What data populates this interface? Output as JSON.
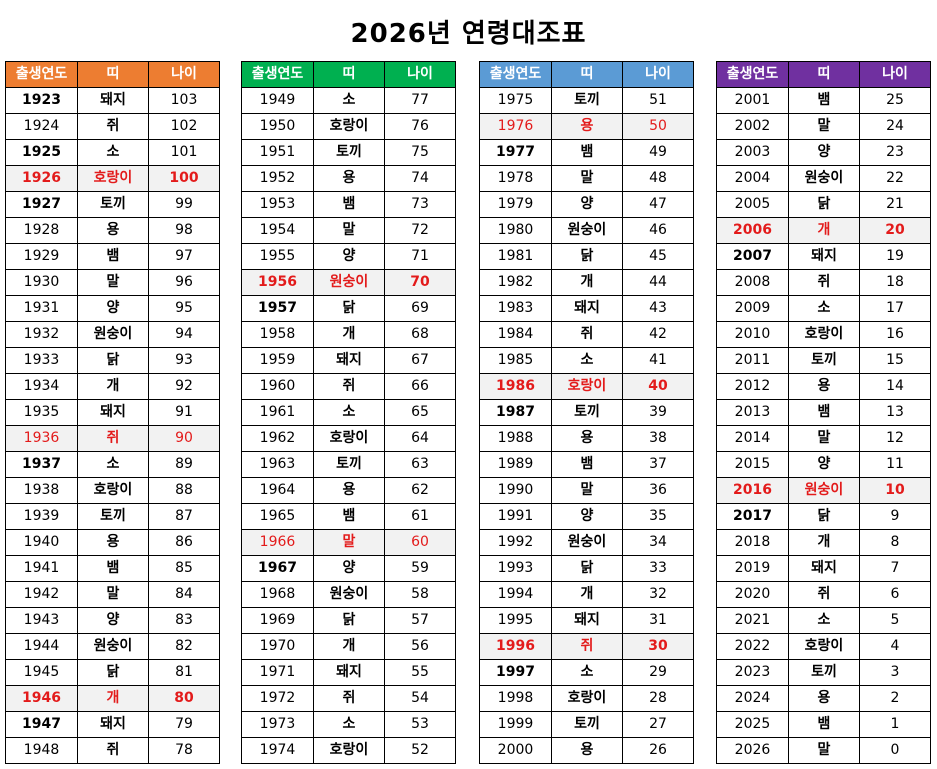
{
  "title": "2026년 연령대조표",
  "headers": {
    "year": "출생연도",
    "zodiac": "띠",
    "age": "나이"
  },
  "tables": [
    {
      "color": "#ED7D31",
      "rows": [
        {
          "year": "1923",
          "zodiac": "돼지",
          "age": "103",
          "bold_year": true
        },
        {
          "year": "1924",
          "zodiac": "쥐",
          "age": "102"
        },
        {
          "year": "1925",
          "zodiac": "소",
          "age": "101",
          "bold_year": true
        },
        {
          "year": "1926",
          "zodiac": "호랑이",
          "age": "100",
          "highlight": true,
          "bold_year": true
        },
        {
          "year": "1927",
          "zodiac": "토끼",
          "age": "99",
          "bold_year": true
        },
        {
          "year": "1928",
          "zodiac": "용",
          "age": "98"
        },
        {
          "year": "1929",
          "zodiac": "뱀",
          "age": "97"
        },
        {
          "year": "1930",
          "zodiac": "말",
          "age": "96"
        },
        {
          "year": "1931",
          "zodiac": "양",
          "age": "95"
        },
        {
          "year": "1932",
          "zodiac": "원숭이",
          "age": "94"
        },
        {
          "year": "1933",
          "zodiac": "닭",
          "age": "93"
        },
        {
          "year": "1934",
          "zodiac": "개",
          "age": "92"
        },
        {
          "year": "1935",
          "zodiac": "돼지",
          "age": "91"
        },
        {
          "year": "1936",
          "zodiac": "쥐",
          "age": "90",
          "highlight": true
        },
        {
          "year": "1937",
          "zodiac": "소",
          "age": "89",
          "bold_year": true
        },
        {
          "year": "1938",
          "zodiac": "호랑이",
          "age": "88"
        },
        {
          "year": "1939",
          "zodiac": "토끼",
          "age": "87"
        },
        {
          "year": "1940",
          "zodiac": "용",
          "age": "86"
        },
        {
          "year": "1941",
          "zodiac": "뱀",
          "age": "85"
        },
        {
          "year": "1942",
          "zodiac": "말",
          "age": "84"
        },
        {
          "year": "1943",
          "zodiac": "양",
          "age": "83"
        },
        {
          "year": "1944",
          "zodiac": "원숭이",
          "age": "82"
        },
        {
          "year": "1945",
          "zodiac": "닭",
          "age": "81"
        },
        {
          "year": "1946",
          "zodiac": "개",
          "age": "80",
          "highlight": true,
          "bold_year": true
        },
        {
          "year": "1947",
          "zodiac": "돼지",
          "age": "79",
          "bold_year": true
        },
        {
          "year": "1948",
          "zodiac": "쥐",
          "age": "78"
        }
      ]
    },
    {
      "color": "#00B050",
      "rows": [
        {
          "year": "1949",
          "zodiac": "소",
          "age": "77"
        },
        {
          "year": "1950",
          "zodiac": "호랑이",
          "age": "76"
        },
        {
          "year": "1951",
          "zodiac": "토끼",
          "age": "75"
        },
        {
          "year": "1952",
          "zodiac": "용",
          "age": "74"
        },
        {
          "year": "1953",
          "zodiac": "뱀",
          "age": "73"
        },
        {
          "year": "1954",
          "zodiac": "말",
          "age": "72"
        },
        {
          "year": "1955",
          "zodiac": "양",
          "age": "71"
        },
        {
          "year": "1956",
          "zodiac": "원숭이",
          "age": "70",
          "highlight": true,
          "bold_year": true
        },
        {
          "year": "1957",
          "zodiac": "닭",
          "age": "69",
          "bold_year": true
        },
        {
          "year": "1958",
          "zodiac": "개",
          "age": "68"
        },
        {
          "year": "1959",
          "zodiac": "돼지",
          "age": "67"
        },
        {
          "year": "1960",
          "zodiac": "쥐",
          "age": "66"
        },
        {
          "year": "1961",
          "zodiac": "소",
          "age": "65"
        },
        {
          "year": "1962",
          "zodiac": "호랑이",
          "age": "64"
        },
        {
          "year": "1963",
          "zodiac": "토끼",
          "age": "63"
        },
        {
          "year": "1964",
          "zodiac": "용",
          "age": "62"
        },
        {
          "year": "1965",
          "zodiac": "뱀",
          "age": "61"
        },
        {
          "year": "1966",
          "zodiac": "말",
          "age": "60",
          "highlight": true
        },
        {
          "year": "1967",
          "zodiac": "양",
          "age": "59",
          "bold_year": true
        },
        {
          "year": "1968",
          "zodiac": "원숭이",
          "age": "58"
        },
        {
          "year": "1969",
          "zodiac": "닭",
          "age": "57"
        },
        {
          "year": "1970",
          "zodiac": "개",
          "age": "56"
        },
        {
          "year": "1971",
          "zodiac": "돼지",
          "age": "55"
        },
        {
          "year": "1972",
          "zodiac": "쥐",
          "age": "54"
        },
        {
          "year": "1973",
          "zodiac": "소",
          "age": "53"
        },
        {
          "year": "1974",
          "zodiac": "호랑이",
          "age": "52"
        }
      ]
    },
    {
      "color": "#5B9BD5",
      "rows": [
        {
          "year": "1975",
          "zodiac": "토끼",
          "age": "51"
        },
        {
          "year": "1976",
          "zodiac": "용",
          "age": "50",
          "highlight": true
        },
        {
          "year": "1977",
          "zodiac": "뱀",
          "age": "49",
          "bold_year": true
        },
        {
          "year": "1978",
          "zodiac": "말",
          "age": "48"
        },
        {
          "year": "1979",
          "zodiac": "양",
          "age": "47"
        },
        {
          "year": "1980",
          "zodiac": "원숭이",
          "age": "46"
        },
        {
          "year": "1981",
          "zodiac": "닭",
          "age": "45"
        },
        {
          "year": "1982",
          "zodiac": "개",
          "age": "44"
        },
        {
          "year": "1983",
          "zodiac": "돼지",
          "age": "43"
        },
        {
          "year": "1984",
          "zodiac": "쥐",
          "age": "42"
        },
        {
          "year": "1985",
          "zodiac": "소",
          "age": "41"
        },
        {
          "year": "1986",
          "zodiac": "호랑이",
          "age": "40",
          "highlight": true,
          "bold_year": true
        },
        {
          "year": "1987",
          "zodiac": "토끼",
          "age": "39",
          "bold_year": true
        },
        {
          "year": "1988",
          "zodiac": "용",
          "age": "38"
        },
        {
          "year": "1989",
          "zodiac": "뱀",
          "age": "37"
        },
        {
          "year": "1990",
          "zodiac": "말",
          "age": "36"
        },
        {
          "year": "1991",
          "zodiac": "양",
          "age": "35"
        },
        {
          "year": "1992",
          "zodiac": "원숭이",
          "age": "34"
        },
        {
          "year": "1993",
          "zodiac": "닭",
          "age": "33"
        },
        {
          "year": "1994",
          "zodiac": "개",
          "age": "32"
        },
        {
          "year": "1995",
          "zodiac": "돼지",
          "age": "31"
        },
        {
          "year": "1996",
          "zodiac": "쥐",
          "age": "30",
          "highlight": true,
          "bold_year": true
        },
        {
          "year": "1997",
          "zodiac": "소",
          "age": "29",
          "bold_year": true
        },
        {
          "year": "1998",
          "zodiac": "호랑이",
          "age": "28"
        },
        {
          "year": "1999",
          "zodiac": "토끼",
          "age": "27"
        },
        {
          "year": "2000",
          "zodiac": "용",
          "age": "26"
        }
      ]
    },
    {
      "color": "#7030A0",
      "rows": [
        {
          "year": "2001",
          "zodiac": "뱀",
          "age": "25"
        },
        {
          "year": "2002",
          "zodiac": "말",
          "age": "24"
        },
        {
          "year": "2003",
          "zodiac": "양",
          "age": "23"
        },
        {
          "year": "2004",
          "zodiac": "원숭이",
          "age": "22"
        },
        {
          "year": "2005",
          "zodiac": "닭",
          "age": "21"
        },
        {
          "year": "2006",
          "zodiac": "개",
          "age": "20",
          "highlight": true,
          "bold_year": true
        },
        {
          "year": "2007",
          "zodiac": "돼지",
          "age": "19",
          "bold_year": true
        },
        {
          "year": "2008",
          "zodiac": "쥐",
          "age": "18"
        },
        {
          "year": "2009",
          "zodiac": "소",
          "age": "17"
        },
        {
          "year": "2010",
          "zodiac": "호랑이",
          "age": "16"
        },
        {
          "year": "2011",
          "zodiac": "토끼",
          "age": "15"
        },
        {
          "year": "2012",
          "zodiac": "용",
          "age": "14"
        },
        {
          "year": "2013",
          "zodiac": "뱀",
          "age": "13"
        },
        {
          "year": "2014",
          "zodiac": "말",
          "age": "12"
        },
        {
          "year": "2015",
          "zodiac": "양",
          "age": "11"
        },
        {
          "year": "2016",
          "zodiac": "원숭이",
          "age": "10",
          "highlight": true,
          "bold_year": true
        },
        {
          "year": "2017",
          "zodiac": "닭",
          "age": "9",
          "bold_year": true
        },
        {
          "year": "2018",
          "zodiac": "개",
          "age": "8"
        },
        {
          "year": "2019",
          "zodiac": "돼지",
          "age": "7"
        },
        {
          "year": "2020",
          "zodiac": "쥐",
          "age": "6"
        },
        {
          "year": "2021",
          "zodiac": "소",
          "age": "5"
        },
        {
          "year": "2022",
          "zodiac": "호랑이",
          "age": "4"
        },
        {
          "year": "2023",
          "zodiac": "토끼",
          "age": "3"
        },
        {
          "year": "2024",
          "zodiac": "용",
          "age": "2"
        },
        {
          "year": "2025",
          "zodiac": "뱀",
          "age": "1"
        },
        {
          "year": "2026",
          "zodiac": "말",
          "age": "0"
        }
      ]
    }
  ],
  "colors": {
    "highlight_text": "#E31B1B",
    "highlight_bg": "#F2F2F2"
  }
}
